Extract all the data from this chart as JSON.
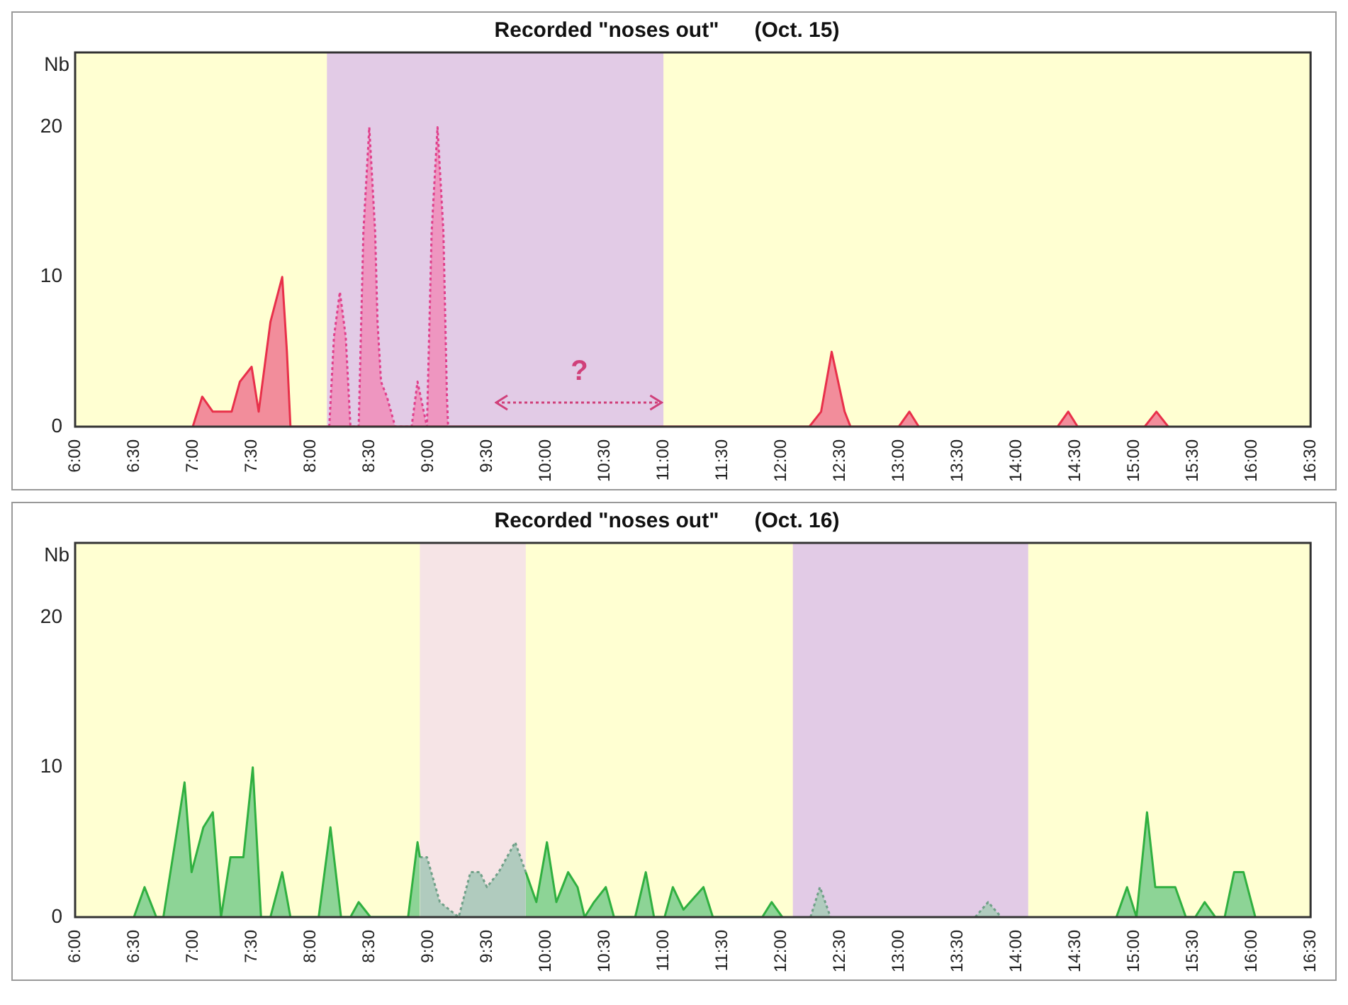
{
  "chart_data": [
    {
      "type": "area",
      "title": "Recorded \"noses out\"      (Oct. 15)",
      "ylabel": "Nb",
      "xlim": [
        6,
        16.5
      ],
      "xticks": [
        {
          "value": 6,
          "label": "6:00"
        },
        {
          "value": 6.5,
          "label": "6:30"
        },
        {
          "value": 7,
          "label": "7:00"
        },
        {
          "value": 7.5,
          "label": "7:30"
        },
        {
          "value": 8,
          "label": "8:00"
        },
        {
          "value": 8.5,
          "label": "8:30"
        },
        {
          "value": 9,
          "label": "9:00"
        },
        {
          "value": 9.5,
          "label": "9:30"
        },
        {
          "value": 10,
          "label": "10:00"
        },
        {
          "value": 10.5,
          "label": "10:30"
        },
        {
          "value": 11,
          "label": "11:00"
        },
        {
          "value": 11.5,
          "label": "11:30"
        },
        {
          "value": 12,
          "label": "12:00"
        },
        {
          "value": 12.5,
          "label": "12:30"
        },
        {
          "value": 13,
          "label": "13:00"
        },
        {
          "value": 13.5,
          "label": "13:30"
        },
        {
          "value": 14,
          "label": "14:00"
        },
        {
          "value": 14.5,
          "label": "14:30"
        },
        {
          "value": 15,
          "label": "15:00"
        },
        {
          "value": 15.5,
          "label": "15:30"
        },
        {
          "value": 16,
          "label": "16:00"
        },
        {
          "value": 16.5,
          "label": "16:30"
        }
      ],
      "ylim": [
        0,
        25
      ],
      "yticks": [
        0,
        10,
        20
      ],
      "grid": false,
      "legend": false,
      "bands": [
        {
          "axis": "x",
          "from": 8.14,
          "to": 11.0,
          "color": "#e2cbe6"
        }
      ],
      "annotations": [
        "?"
      ],
      "series": [
        {
          "color": "#e8304a",
          "line_style": "solid",
          "x": [
            7.0,
            7.08,
            7.17,
            7.33,
            7.4,
            7.5,
            7.56,
            7.66,
            7.76,
            7.8,
            7.83,
            12.24,
            12.34,
            12.43,
            12.54,
            12.59,
            13.0,
            13.09,
            13.17,
            14.35,
            14.44,
            14.52,
            15.09,
            15.19,
            15.29
          ],
          "values": [
            0,
            2,
            1,
            1,
            3,
            4,
            1,
            7,
            10,
            5,
            0,
            0,
            1,
            5,
            1,
            0,
            0,
            1,
            0,
            0,
            1,
            0,
            0,
            1,
            0
          ]
        },
        {
          "color": "#e0408c",
          "line_style": "dotted",
          "x": [
            8.16,
            8.2,
            8.25,
            8.3,
            8.34,
            8.41,
            8.45,
            8.5,
            8.55,
            8.57,
            8.6,
            8.65,
            8.72,
            8.86,
            8.91,
            8.99,
            9.03,
            9.08,
            9.13,
            9.16,
            9.17
          ],
          "values": [
            0,
            6,
            9,
            6,
            0,
            0,
            13,
            20,
            13,
            7,
            3,
            2,
            0,
            0,
            3,
            0,
            13,
            20,
            13,
            2,
            0
          ]
        }
      ]
    },
    {
      "type": "area",
      "title": "Recorded \"noses out\"      (Oct. 16)",
      "ylabel": "Nb",
      "xlim": [
        6,
        16.5
      ],
      "xticks": [
        {
          "value": 6,
          "label": "6:00"
        },
        {
          "value": 6.5,
          "label": "6:30"
        },
        {
          "value": 7,
          "label": "7:00"
        },
        {
          "value": 7.5,
          "label": "7:30"
        },
        {
          "value": 8,
          "label": "8:00"
        },
        {
          "value": 8.5,
          "label": "8:30"
        },
        {
          "value": 9,
          "label": "9:00"
        },
        {
          "value": 9.5,
          "label": "9:30"
        },
        {
          "value": 10,
          "label": "10:00"
        },
        {
          "value": 10.5,
          "label": "10:30"
        },
        {
          "value": 11,
          "label": "11:00"
        },
        {
          "value": 11.5,
          "label": "11:30"
        },
        {
          "value": 12,
          "label": "12:00"
        },
        {
          "value": 12.5,
          "label": "12:30"
        },
        {
          "value": 13,
          "label": "13:00"
        },
        {
          "value": 13.5,
          "label": "13:30"
        },
        {
          "value": 14,
          "label": "14:00"
        },
        {
          "value": 14.5,
          "label": "14:30"
        },
        {
          "value": 15,
          "label": "15:00"
        },
        {
          "value": 15.5,
          "label": "15:30"
        },
        {
          "value": 16,
          "label": "16:00"
        },
        {
          "value": 16.5,
          "label": "16:30"
        }
      ],
      "ylim": [
        0,
        25
      ],
      "yticks": [
        0,
        10,
        20
      ],
      "grid": false,
      "legend": false,
      "bands": [
        {
          "axis": "x",
          "from": 8.93,
          "to": 9.83,
          "color": "#f6e4e6"
        },
        {
          "axis": "x",
          "from": 12.1,
          "to": 14.1,
          "color": "#e2cbe6"
        }
      ],
      "series": [
        {
          "color": "#30b040",
          "line_style": "solid",
          "x": [
            6.5,
            6.59,
            6.69,
            6.75,
            6.93,
            6.99,
            7.09,
            7.17,
            7.24,
            7.32,
            7.43,
            7.51,
            7.58,
            7.66,
            7.76,
            7.83,
            8.07,
            8.17,
            8.26,
            8.34,
            8.41,
            8.51,
            8.83,
            8.91,
            8.93,
            null,
            9.83,
            9.92,
            10.01,
            10.09,
            10.19,
            10.27,
            10.33,
            10.41,
            10.51,
            10.58,
            10.76,
            10.85,
            10.92,
            11.01,
            11.08,
            11.17,
            11.34,
            11.42,
            11.84,
            11.92,
            12.01,
            null,
            14.85,
            14.94,
            15.02,
            15.11,
            15.18,
            15.28,
            15.35,
            15.44,
            15.52,
            15.6,
            15.69,
            15.77,
            15.85,
            15.93,
            16.03
          ],
          "values": [
            0,
            2,
            0,
            0,
            9,
            3,
            6,
            7,
            0,
            4,
            4,
            10,
            0,
            0,
            3,
            0,
            0,
            6,
            0,
            0,
            1,
            0,
            0,
            5,
            4,
            null,
            3,
            1,
            5,
            1,
            3,
            2,
            0,
            1,
            2,
            0,
            0,
            3,
            0,
            0,
            2,
            0.5,
            2,
            0,
            0,
            1,
            0,
            null,
            0,
            2,
            0,
            7,
            2,
            2,
            2,
            0,
            0,
            1,
            0,
            0,
            3,
            3,
            0
          ]
        },
        {
          "color": "#70a088",
          "line_style": "dotted",
          "x": [
            8.93,
            8.99,
            9.1,
            9.26,
            9.36,
            9.44,
            9.5,
            9.6,
            9.74,
            9.83,
            null,
            12.25,
            12.33,
            12.42,
            null,
            13.65,
            13.76,
            13.87
          ],
          "values": [
            4,
            4,
            1,
            0,
            3,
            3,
            2,
            3,
            5,
            3,
            null,
            0,
            2,
            0,
            null,
            0,
            1,
            0
          ]
        }
      ]
    }
  ]
}
